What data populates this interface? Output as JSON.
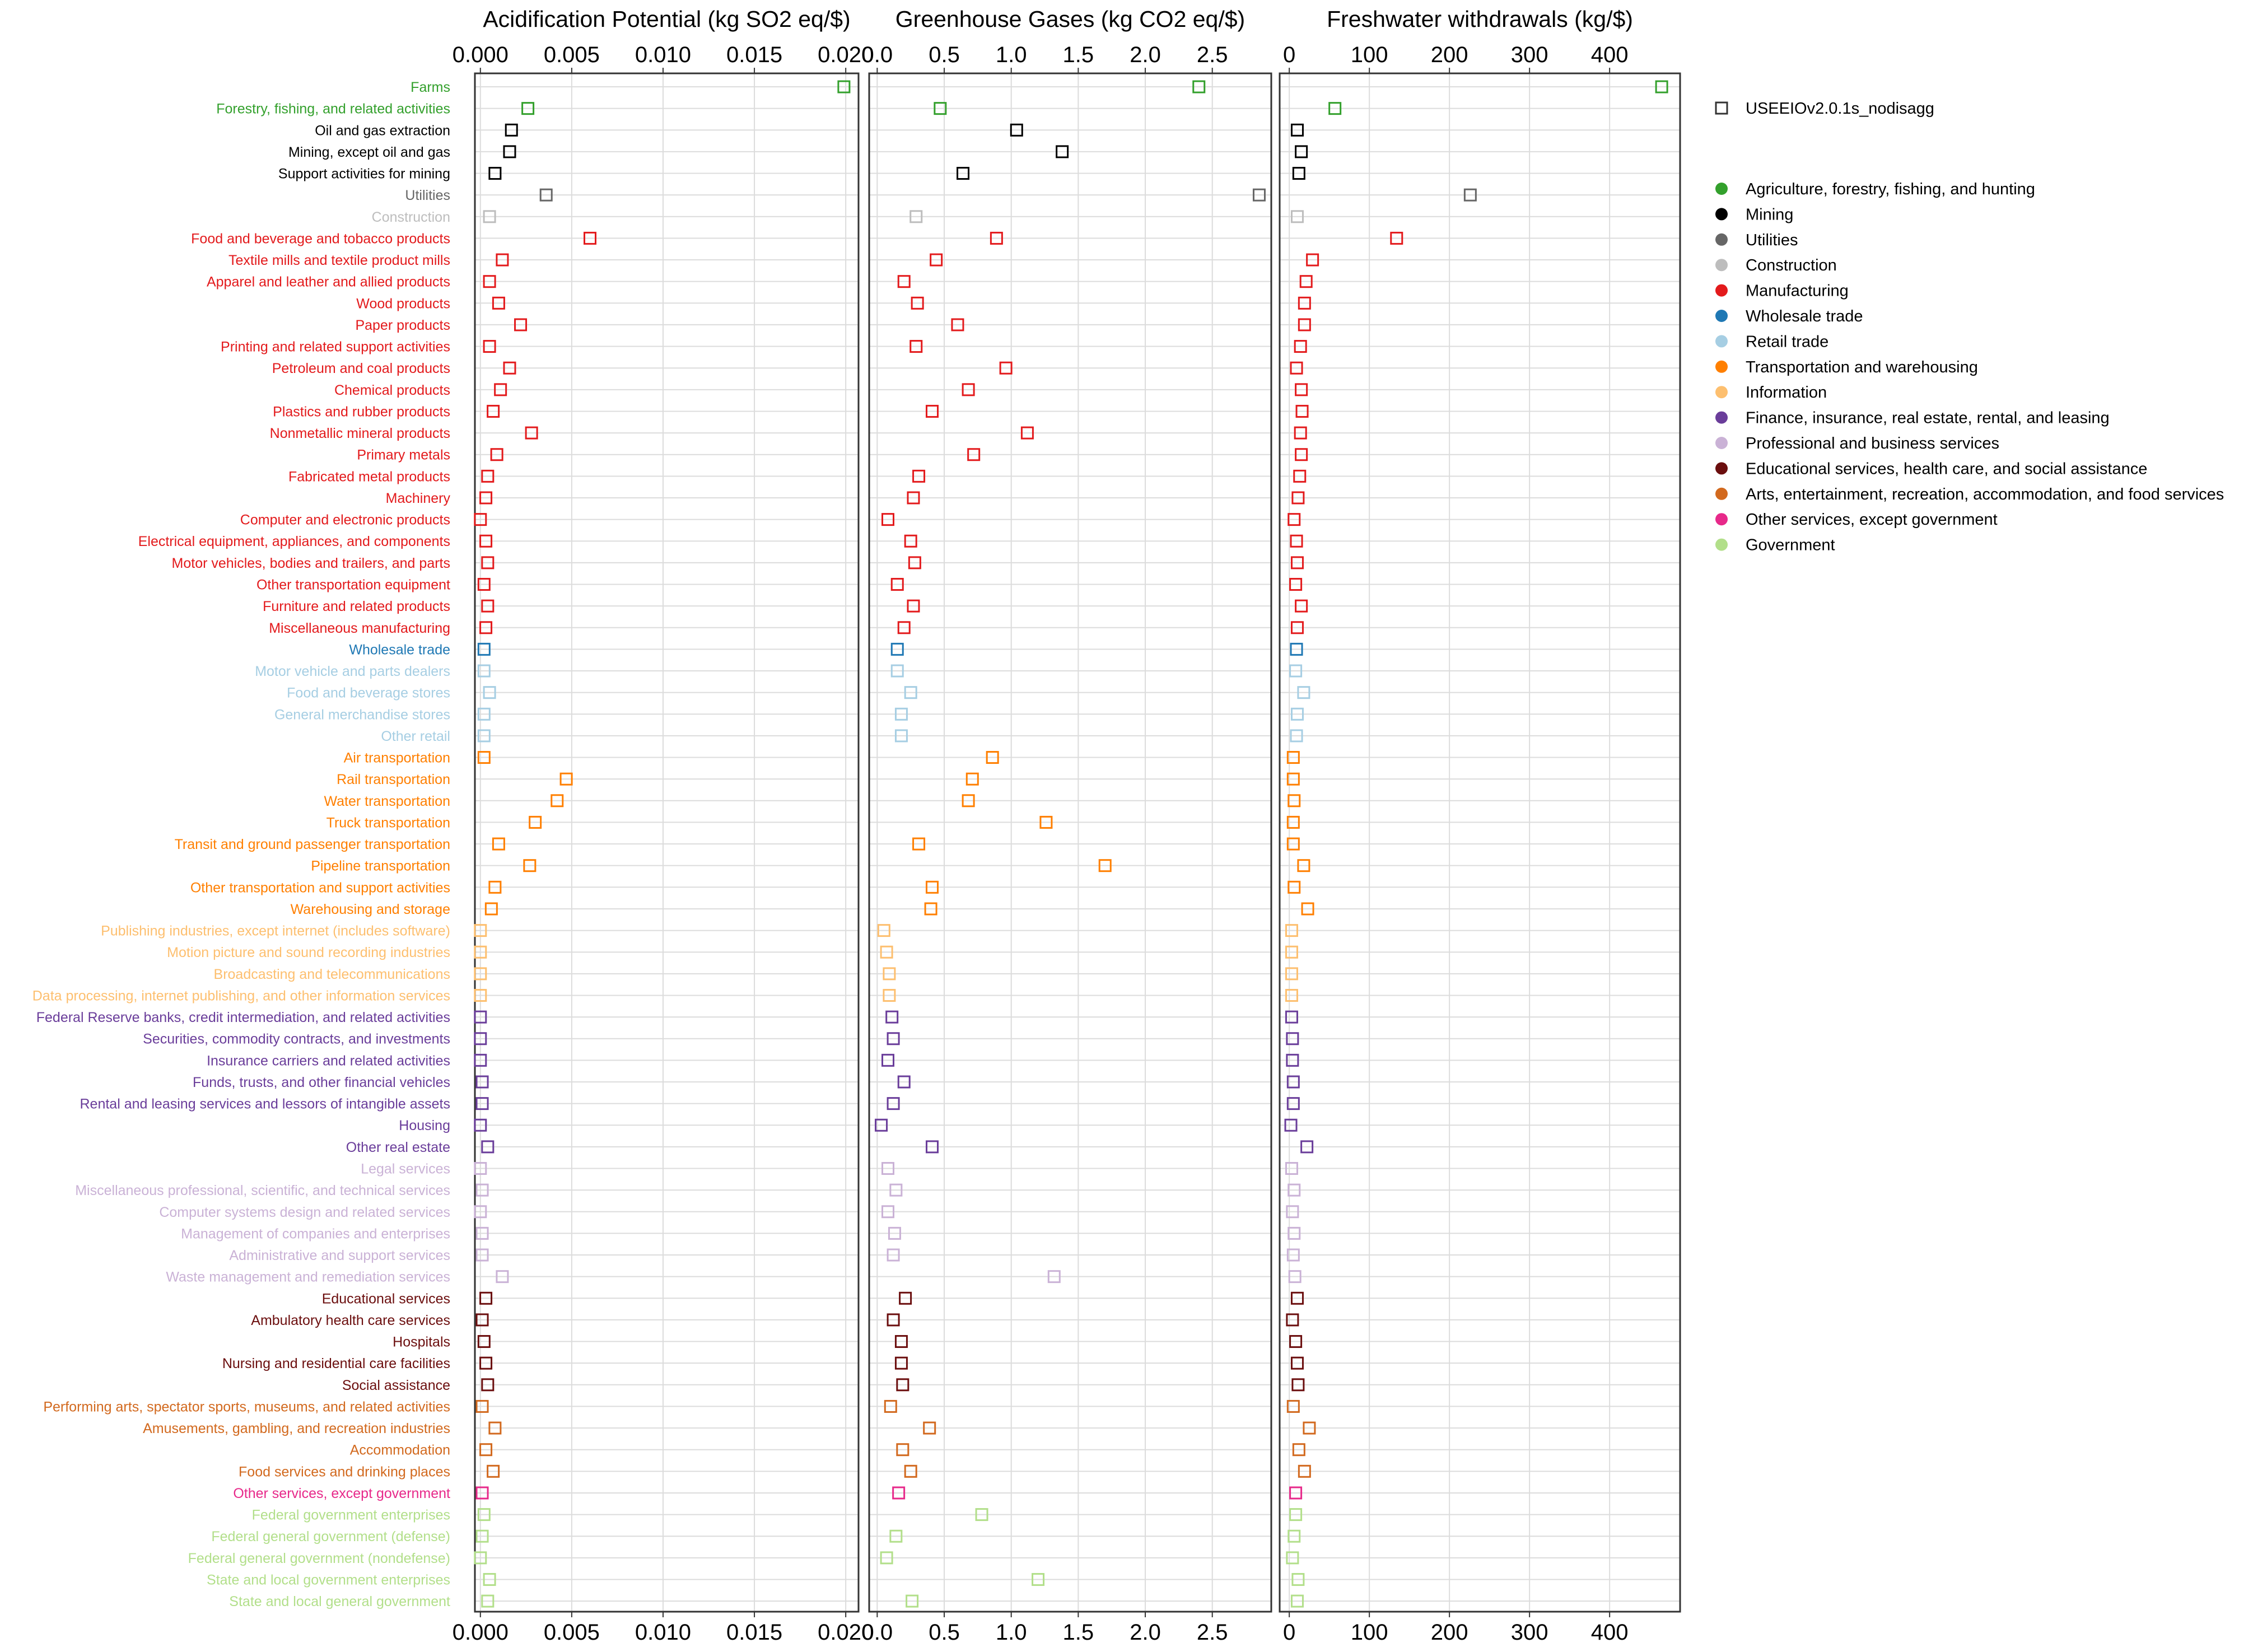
{
  "chart_data": {
    "type": "scatter",
    "legend": {
      "position": "right",
      "model_label": "USEEIOv2.0.1s_nodisagg",
      "groups": [
        {
          "name": "Agriculture, forestry, fishing, and hunting",
          "color": "#33a02c"
        },
        {
          "name": "Mining",
          "color": "#000000"
        },
        {
          "name": "Utilities",
          "color": "#666666"
        },
        {
          "name": "Construction",
          "color": "#bdbdbd"
        },
        {
          "name": "Manufacturing",
          "color": "#e31a1c"
        },
        {
          "name": "Wholesale trade",
          "color": "#1f78b4"
        },
        {
          "name": "Retail trade",
          "color": "#a6cee3"
        },
        {
          "name": "Transportation and warehousing",
          "color": "#ff7f00"
        },
        {
          "name": "Information",
          "color": "#fdbf6f"
        },
        {
          "name": "Finance, insurance, real estate, rental, and leasing",
          "color": "#6a3d9a"
        },
        {
          "name": "Professional and business services",
          "color": "#cab2d6"
        },
        {
          "name": "Educational services, health care, and social assistance",
          "color": "#6b0e0e"
        },
        {
          "name": "Arts, entertainment, recreation, accommodation, and food services",
          "color": "#d2691e"
        },
        {
          "name": "Other services, except government",
          "color": "#e7298a"
        },
        {
          "name": "Government",
          "color": "#b2df8a"
        }
      ]
    },
    "categories": [
      {
        "label": "Farms",
        "group": 0
      },
      {
        "label": "Forestry, fishing, and related activities",
        "group": 0
      },
      {
        "label": "Oil and gas extraction",
        "group": 1
      },
      {
        "label": "Mining, except oil and gas",
        "group": 1
      },
      {
        "label": "Support activities for mining",
        "group": 1
      },
      {
        "label": "Utilities",
        "group": 2
      },
      {
        "label": "Construction",
        "group": 3
      },
      {
        "label": "Food and beverage and tobacco products",
        "group": 4
      },
      {
        "label": "Textile mills and textile product mills",
        "group": 4
      },
      {
        "label": "Apparel and leather and allied products",
        "group": 4
      },
      {
        "label": "Wood products",
        "group": 4
      },
      {
        "label": "Paper products",
        "group": 4
      },
      {
        "label": "Printing and related support activities",
        "group": 4
      },
      {
        "label": "Petroleum and coal products",
        "group": 4
      },
      {
        "label": "Chemical products",
        "group": 4
      },
      {
        "label": "Plastics and rubber products",
        "group": 4
      },
      {
        "label": "Nonmetallic mineral products",
        "group": 4
      },
      {
        "label": "Primary metals",
        "group": 4
      },
      {
        "label": "Fabricated metal products",
        "group": 4
      },
      {
        "label": "Machinery",
        "group": 4
      },
      {
        "label": "Computer and electronic products",
        "group": 4
      },
      {
        "label": "Electrical equipment, appliances, and components",
        "group": 4
      },
      {
        "label": "Motor vehicles, bodies and trailers, and parts",
        "group": 4
      },
      {
        "label": "Other transportation equipment",
        "group": 4
      },
      {
        "label": "Furniture and related products",
        "group": 4
      },
      {
        "label": "Miscellaneous manufacturing",
        "group": 4
      },
      {
        "label": "Wholesale trade",
        "group": 5
      },
      {
        "label": "Motor vehicle and parts dealers",
        "group": 6
      },
      {
        "label": "Food and beverage stores",
        "group": 6
      },
      {
        "label": "General merchandise stores",
        "group": 6
      },
      {
        "label": "Other retail",
        "group": 6
      },
      {
        "label": "Air transportation",
        "group": 7
      },
      {
        "label": "Rail transportation",
        "group": 7
      },
      {
        "label": "Water transportation",
        "group": 7
      },
      {
        "label": "Truck transportation",
        "group": 7
      },
      {
        "label": "Transit and ground passenger transportation",
        "group": 7
      },
      {
        "label": "Pipeline transportation",
        "group": 7
      },
      {
        "label": "Other transportation and support activities",
        "group": 7
      },
      {
        "label": "Warehousing and storage",
        "group": 7
      },
      {
        "label": "Publishing industries, except internet (includes software)",
        "group": 8
      },
      {
        "label": "Motion picture and sound recording industries",
        "group": 8
      },
      {
        "label": "Broadcasting and telecommunications",
        "group": 8
      },
      {
        "label": "Data processing, internet publishing, and other information services",
        "group": 8
      },
      {
        "label": "Federal Reserve banks, credit intermediation, and related activities",
        "group": 9
      },
      {
        "label": "Securities, commodity contracts, and investments",
        "group": 9
      },
      {
        "label": "Insurance carriers and related activities",
        "group": 9
      },
      {
        "label": "Funds, trusts, and other financial vehicles",
        "group": 9
      },
      {
        "label": "Rental and leasing services and lessors of intangible assets",
        "group": 9
      },
      {
        "label": "Housing",
        "group": 9
      },
      {
        "label": "Other real estate",
        "group": 9
      },
      {
        "label": "Legal services",
        "group": 10
      },
      {
        "label": "Miscellaneous professional, scientific, and technical services",
        "group": 10
      },
      {
        "label": "Computer systems design and related services",
        "group": 10
      },
      {
        "label": "Management of companies and enterprises",
        "group": 10
      },
      {
        "label": "Administrative and support services",
        "group": 10
      },
      {
        "label": "Waste management and remediation services",
        "group": 10
      },
      {
        "label": "Educational services",
        "group": 11
      },
      {
        "label": "Ambulatory health care services",
        "group": 11
      },
      {
        "label": "Hospitals",
        "group": 11
      },
      {
        "label": "Nursing and residential care facilities",
        "group": 11
      },
      {
        "label": "Social assistance",
        "group": 11
      },
      {
        "label": "Performing arts, spectator sports, museums, and related activities",
        "group": 12
      },
      {
        "label": "Amusements, gambling, and recreation industries",
        "group": 12
      },
      {
        "label": "Accommodation",
        "group": 12
      },
      {
        "label": "Food services and drinking places",
        "group": 12
      },
      {
        "label": "Other services, except government",
        "group": 13
      },
      {
        "label": "Federal government enterprises",
        "group": 14
      },
      {
        "label": "Federal general government (defense)",
        "group": 14
      },
      {
        "label": "Federal general government (nondefense)",
        "group": 14
      },
      {
        "label": "State and local government enterprises",
        "group": 14
      },
      {
        "label": "State and local general government",
        "group": 14
      }
    ],
    "panels": [
      {
        "title": "Acidification Potential (kg SO2 eq/$)",
        "xlim": [
          -0.0003,
          0.0207
        ],
        "ticks": [
          0.0,
          0.005,
          0.01,
          0.015,
          0.02
        ],
        "tick_labels": [
          "0.000",
          "0.005",
          "0.010",
          "0.015",
          "0.020"
        ],
        "values": [
          0.0199,
          0.0026,
          0.0017,
          0.0016,
          0.0008,
          0.0036,
          0.0005,
          0.006,
          0.0012,
          0.0005,
          0.001,
          0.0022,
          0.0005,
          0.0016,
          0.0011,
          0.0007,
          0.0028,
          0.0009,
          0.0004,
          0.0003,
          0.0,
          0.0003,
          0.0004,
          0.0002,
          0.0004,
          0.0003,
          0.0002,
          0.0002,
          0.0005,
          0.0002,
          0.0002,
          0.0002,
          0.0047,
          0.0042,
          0.003,
          0.001,
          0.0027,
          0.0008,
          0.0006,
          0.0,
          0.0,
          0.0,
          0.0,
          0.0,
          0.0,
          0.0,
          0.0001,
          0.0001,
          0.0,
          0.0004,
          0.0,
          0.0001,
          0.0,
          0.0001,
          0.0001,
          0.0012,
          0.0003,
          0.0001,
          0.0002,
          0.0003,
          0.0004,
          0.0001,
          0.0008,
          0.0003,
          0.0007,
          0.0001,
          0.0002,
          0.0001,
          0.0,
          0.0005,
          0.0004
        ]
      },
      {
        "title": "Greenhouse Gases (kg CO2 eq/$)",
        "xlim": [
          -0.06,
          2.94
        ],
        "ticks": [
          0.0,
          0.5,
          1.0,
          1.5,
          2.0,
          2.5
        ],
        "tick_labels": [
          "0.0",
          "0.5",
          "1.0",
          "1.5",
          "2.0",
          "2.5"
        ],
        "values": [
          2.4,
          0.47,
          1.04,
          1.38,
          0.64,
          2.85,
          0.29,
          0.89,
          0.44,
          0.2,
          0.3,
          0.6,
          0.29,
          0.96,
          0.68,
          0.41,
          1.12,
          0.72,
          0.31,
          0.27,
          0.08,
          0.25,
          0.28,
          0.15,
          0.27,
          0.2,
          0.15,
          0.15,
          0.25,
          0.18,
          0.18,
          0.86,
          0.71,
          0.68,
          1.26,
          0.31,
          1.7,
          0.41,
          0.4,
          0.05,
          0.07,
          0.09,
          0.09,
          0.11,
          0.12,
          0.08,
          0.2,
          0.12,
          0.03,
          0.41,
          0.08,
          0.14,
          0.08,
          0.13,
          0.12,
          1.32,
          0.21,
          0.12,
          0.18,
          0.18,
          0.19,
          0.1,
          0.39,
          0.19,
          0.25,
          0.16,
          0.78,
          0.14,
          0.07,
          1.2,
          0.26
        ]
      },
      {
        "title": "Freshwater withdrawals (kg/$)",
        "xlim": [
          -12,
          488
        ],
        "ticks": [
          0,
          100,
          200,
          300,
          400
        ],
        "tick_labels": [
          "0",
          "100",
          "200",
          "300",
          "400"
        ],
        "values": [
          465,
          57,
          10,
          15,
          12,
          226,
          10,
          134,
          29,
          21,
          19,
          19,
          14,
          9,
          15,
          16,
          14,
          15,
          13,
          11,
          6,
          9,
          10,
          8,
          15,
          10,
          9,
          8,
          18,
          10,
          9,
          5,
          5,
          6,
          5,
          5,
          18,
          6,
          23,
          3,
          3,
          3,
          3,
          3,
          4,
          4,
          5,
          5,
          2,
          22,
          3,
          6,
          4,
          6,
          5,
          7,
          10,
          4,
          8,
          10,
          11,
          5,
          25,
          12,
          19,
          8,
          8,
          6,
          4,
          11,
          10
        ]
      }
    ]
  }
}
